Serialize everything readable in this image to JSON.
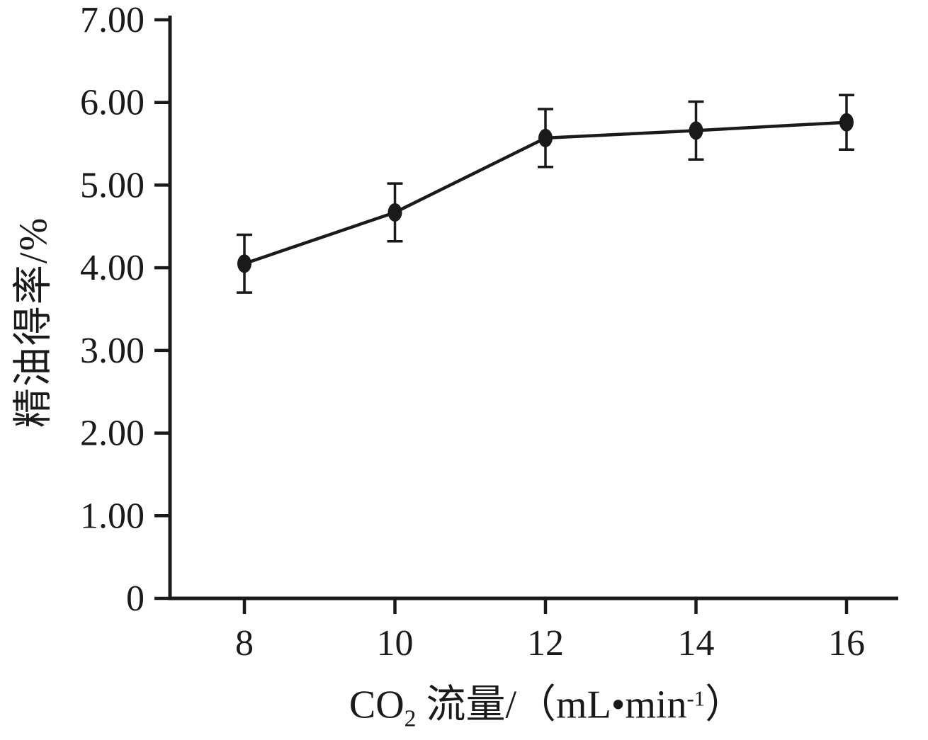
{
  "chart_data": {
    "type": "line",
    "title": "",
    "x": [
      8,
      10,
      12,
      14,
      16
    ],
    "xticks": [
      "8",
      "10",
      "12",
      "14",
      "16"
    ],
    "yticks": [
      "0",
      "1.00",
      "2.00",
      "3.00",
      "4.00",
      "5.00",
      "6.00",
      "7.00"
    ],
    "ytick_values": [
      0,
      1,
      2,
      3,
      4,
      5,
      6,
      7
    ],
    "ylim": [
      0,
      7
    ],
    "xlabel": "CO2 流量/（mL•min-1）",
    "xlabel_parts": {
      "pre": "CO",
      "sub": "2",
      "mid": " 流量/（mL•min",
      "sup": "-1",
      "post": "）"
    },
    "ylabel": "精油得率/%",
    "series": [
      {
        "name": "精油得率",
        "values": [
          4.05,
          4.67,
          5.57,
          5.66,
          5.76
        ],
        "errors": [
          0.35,
          0.35,
          0.35,
          0.35,
          0.33
        ]
      }
    ],
    "grid": false,
    "legend": "none",
    "line_color": "#1a1a1a",
    "axis_color": "#1a1a1a",
    "marker": "filled-ellipse"
  }
}
